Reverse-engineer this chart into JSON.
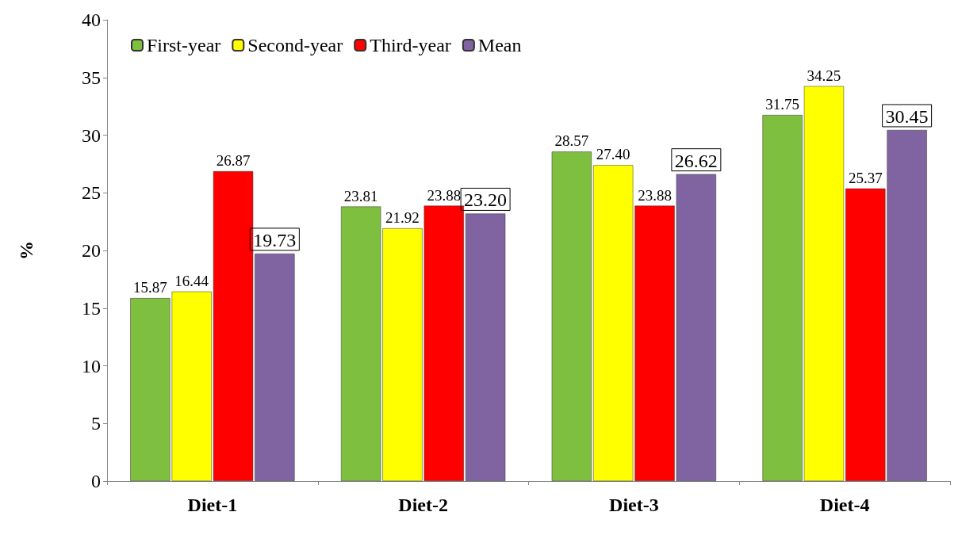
{
  "chart_data": {
    "type": "bar",
    "ylabel": "%",
    "categories": [
      "Diet-1",
      "Diet-2",
      "Diet-3",
      "Diet-4"
    ],
    "series": [
      {
        "name": "First-year",
        "color": "#7fbf3f",
        "values": [
          15.87,
          23.81,
          28.57,
          31.75
        ],
        "value_labels": [
          "15.87",
          "23.81",
          "28.57",
          "31.75"
        ]
      },
      {
        "name": "Second-year",
        "color": "#ffff00",
        "values": [
          16.44,
          21.92,
          27.4,
          34.25
        ],
        "value_labels": [
          "16.44",
          "21.92",
          "27.40",
          "34.25"
        ]
      },
      {
        "name": "Third-year",
        "color": "#ff0000",
        "values": [
          26.87,
          23.88,
          23.88,
          25.37
        ],
        "value_labels": [
          "26.87",
          "23.88",
          "23.88",
          "25.37"
        ]
      },
      {
        "name": "Mean",
        "color": "#8064a2",
        "values": [
          19.73,
          23.2,
          26.62,
          30.45
        ],
        "value_labels": [
          "19.73",
          "23.20",
          "26.62",
          "30.45"
        ]
      }
    ],
    "ylim": [
      0,
      40
    ],
    "yticks": [
      0,
      5,
      10,
      15,
      20,
      25,
      30,
      35,
      40
    ],
    "grid": false,
    "legend": "top left"
  }
}
